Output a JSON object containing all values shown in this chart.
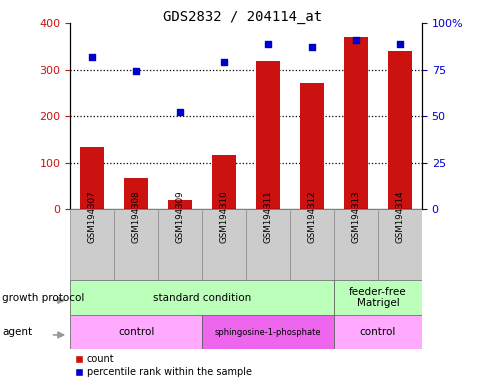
{
  "title": "GDS2832 / 204114_at",
  "samples": [
    "GSM194307",
    "GSM194308",
    "GSM194309",
    "GSM194310",
    "GSM194311",
    "GSM194312",
    "GSM194313",
    "GSM194314"
  ],
  "counts": [
    133,
    68,
    20,
    117,
    318,
    272,
    370,
    340
  ],
  "percentile_ranks": [
    82,
    74,
    52,
    79,
    89,
    87,
    91,
    89
  ],
  "ylim_left": [
    0,
    400
  ],
  "ylim_right": [
    0,
    100
  ],
  "yticks_left": [
    0,
    100,
    200,
    300,
    400
  ],
  "yticks_right": [
    0,
    25,
    50,
    75,
    100
  ],
  "yticklabels_right": [
    "0",
    "25",
    "50",
    "75",
    "100%"
  ],
  "bar_color": "#cc1111",
  "dot_color": "#0000cc",
  "grid_dotted_color": "#000000",
  "gp_groups": [
    {
      "label": "standard condition",
      "start": 0,
      "end": 6,
      "color": "#bbffbb"
    },
    {
      "label": "feeder-free\nMatrigel",
      "start": 6,
      "end": 8,
      "color": "#bbffbb"
    }
  ],
  "ag_groups": [
    {
      "label": "control",
      "start": 0,
      "end": 3,
      "color": "#ffaaff"
    },
    {
      "label": "sphingosine-1-phosphate",
      "start": 3,
      "end": 6,
      "color": "#ee66ee"
    },
    {
      "label": "control",
      "start": 6,
      "end": 8,
      "color": "#ffaaff"
    }
  ],
  "legend_count_color": "#cc1111",
  "legend_dot_color": "#0000cc",
  "bg_color": "#ffffff",
  "tick_color_left": "#cc1111",
  "tick_color_right": "#0000cc",
  "label_row_color": "#cccccc",
  "label_row_edge": "#888888",
  "arrow_color": "#999999",
  "gp_label": "growth protocol",
  "ag_label": "agent",
  "legend_count_label": "count",
  "legend_pct_label": "percentile rank within the sample"
}
